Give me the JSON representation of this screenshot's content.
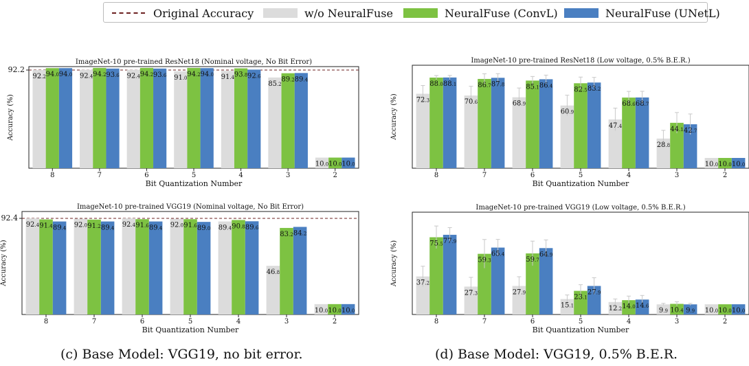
{
  "legend": {
    "items": [
      {
        "label": "Original Accuracy",
        "kind": "dash",
        "color": "#6b1f1f"
      },
      {
        "label": "w/o NeuralFuse",
        "kind": "box",
        "color": "#dcdcdc"
      },
      {
        "label": "NeuralFuse (ConvL)",
        "kind": "box",
        "color": "#7dc242"
      },
      {
        "label": "NeuralFuse (UNetL)",
        "kind": "box",
        "color": "#4a7fc1"
      }
    ]
  },
  "captions": {
    "left": "(c) Base Model: VGG19, no bit error.",
    "right": "(d) Base Model: VGG19, 0.5% B.E.R."
  },
  "chart_data": [
    {
      "type": "bar",
      "title": "ImageNet-10 pre-trained ResNet18 (Nominal voltage, No Bit Error)",
      "xlabel": "Bit Quantization Number",
      "ylabel": "Accuracy (%)",
      "categories": [
        "8",
        "7",
        "6",
        "5",
        "4",
        "3",
        "2"
      ],
      "ylim": [
        0,
        92.2
      ],
      "ytick_label": "92.2",
      "reference_line": 92.2,
      "series": [
        {
          "name": "w/o NeuralFuse",
          "values": [
            92.2,
            92.4,
            92.4,
            91.0,
            91.4,
            85.2,
            10.0
          ],
          "labels": [
            "92.2",
            "92.4",
            "92.4",
            "91.0",
            "91.4",
            "85.2",
            "10.0"
          ]
        },
        {
          "name": "NeuralFuse (ConvL)",
          "values": [
            94.0,
            94.2,
            94.2,
            94.2,
            93.8,
            89.2,
            10.0
          ],
          "labels": [
            "94.0",
            "94.2",
            "94.2",
            "94.2",
            "93.8",
            "89.2",
            "10.0"
          ]
        },
        {
          "name": "NeuralFuse (UNetL)",
          "values": [
            94.0,
            93.6,
            93.6,
            94.0,
            92.6,
            89.4,
            10.0
          ],
          "labels": [
            "94.0",
            "93.6",
            "93.6",
            "94.0",
            "92.6",
            "89.4",
            "10.0"
          ]
        }
      ]
    },
    {
      "type": "bar",
      "title": "ImageNet-10 pre-trained ResNet18 (Low voltage, 0.5% B.E.R.)",
      "xlabel": "Bit Quantization Number",
      "ylabel": "Accuracy (%)",
      "categories": [
        "8",
        "7",
        "6",
        "5",
        "4",
        "3",
        "2"
      ],
      "ylim": [
        0,
        100
      ],
      "series": [
        {
          "name": "w/o NeuralFuse",
          "values": [
            72.3,
            70.6,
            68.9,
            60.9,
            47.4,
            28.8,
            10.0
          ],
          "labels": [
            "72.3",
            "70.6",
            "68.9",
            "60.9",
            "47.4",
            "28.8",
            "10.0"
          ],
          "errors": [
            8,
            9,
            9,
            10,
            11,
            8,
            0
          ]
        },
        {
          "name": "NeuralFuse (ConvL)",
          "values": [
            88.0,
            86.7,
            85.1,
            82.5,
            68.6,
            44.1,
            10.0
          ],
          "labels": [
            "88.0",
            "86.7",
            "85.1",
            "82.5",
            "68.6",
            "44.1",
            "10.0"
          ],
          "errors": [
            2,
            5,
            4,
            6,
            6,
            10,
            0
          ]
        },
        {
          "name": "NeuralFuse (UNetL)",
          "values": [
            88.1,
            87.8,
            86.4,
            83.2,
            68.7,
            42.7,
            10.0
          ],
          "labels": [
            "88.1",
            "87.8",
            "86.4",
            "83.2",
            "68.7",
            "42.7",
            "10.0"
          ],
          "errors": [
            2,
            4,
            4,
            5,
            6,
            10,
            0
          ]
        }
      ]
    },
    {
      "type": "bar",
      "title": "ImageNet-10 pre-trained VGG19 (Nominal voltage, No Bit Error)",
      "xlabel": "Bit Quantization Number",
      "ylabel": "Accuracy (%)",
      "categories": [
        "8",
        "7",
        "6",
        "5",
        "4",
        "3",
        "2"
      ],
      "ylim": [
        0,
        92.4
      ],
      "ytick_label": "92.4",
      "reference_line": 92.4,
      "series": [
        {
          "name": "w/o NeuralFuse",
          "values": [
            92.4,
            92.0,
            92.4,
            92.0,
            89.4,
            46.8,
            10.0
          ],
          "labels": [
            "92.4",
            "92.0",
            "92.4",
            "92.0",
            "89.4",
            "46.8",
            "10.0"
          ]
        },
        {
          "name": "NeuralFuse (ConvL)",
          "values": [
            91.4,
            91.2,
            91.6,
            91.6,
            90.8,
            83.2,
            10.0
          ],
          "labels": [
            "91.4",
            "91.2",
            "91.6",
            "91.6",
            "90.8",
            "83.2",
            "10.0"
          ]
        },
        {
          "name": "NeuralFuse (UNetL)",
          "values": [
            89.4,
            89.4,
            89.4,
            89.0,
            89.6,
            84.2,
            10.0
          ],
          "labels": [
            "89.4",
            "89.4",
            "89.4",
            "89.0",
            "89.6",
            "84.2",
            "10.0"
          ]
        }
      ]
    },
    {
      "type": "bar",
      "title": "ImageNet-10 pre-trained VGG19 (Low voltage, 0.5% B.E.R.)",
      "xlabel": "Bit Quantization Number",
      "ylabel": "Accuracy (%)",
      "categories": [
        "8",
        "7",
        "6",
        "5",
        "4",
        "3",
        "2"
      ],
      "ylim": [
        0,
        100
      ],
      "series": [
        {
          "name": "w/o NeuralFuse",
          "values": [
            37.2,
            27.3,
            27.9,
            15.1,
            12.2,
            9.9,
            10.0
          ],
          "labels": [
            "37.2",
            "27.3",
            "27.9",
            "15.1",
            "12.2",
            "9.9",
            "10.0"
          ],
          "errors": [
            10,
            9,
            9,
            4,
            3,
            1,
            0
          ]
        },
        {
          "name": "NeuralFuse (ConvL)",
          "values": [
            75.5,
            59.3,
            59.7,
            23.1,
            14.0,
            10.4,
            10.0
          ],
          "labels": [
            "75.5",
            "59.3",
            "59.7",
            "23.1",
            "14.0",
            "10.4",
            "10.0"
          ],
          "errors": [
            11,
            14,
            12,
            6,
            4,
            2,
            0
          ]
        },
        {
          "name": "NeuralFuse (UNetL)",
          "values": [
            77.9,
            65.4,
            64.9,
            27.9,
            14.6,
            9.9,
            10.0
          ],
          "labels": [
            "77.9",
            "65.4",
            "64.9",
            "27.9",
            "14.6",
            "9.9",
            "10.0"
          ],
          "errors": [
            7,
            8,
            8,
            8,
            4,
            1,
            0
          ]
        }
      ]
    }
  ]
}
